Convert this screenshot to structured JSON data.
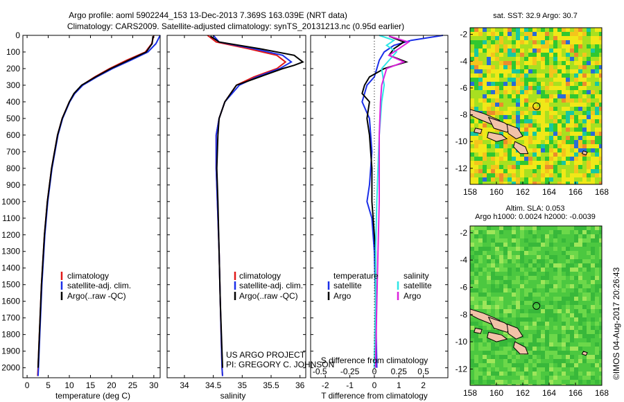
{
  "header": {
    "line1": "Argo profile: aoml 5902244_153 13-Dec-2013 7.369S 163.039E (NRT data)",
    "line2": "Climatology: CARS2009. Satellite-adjusted climatology: synTS_20131213.nc (0.95d earlier)"
  },
  "credit": {
    "line1": "US ARGO PROJECT",
    "line2": "PI: GREGORY C. JOHNSON"
  },
  "timestamp": "©IMOS 04-Aug-2017 20:26:43",
  "colors": {
    "climatology": "#e01818",
    "satellite": "#1a2ee8",
    "argo": "#000000",
    "satellite_salinity": "#2ee6e6",
    "argo_salinity": "#dd22dd",
    "land": "#f2c2a8"
  },
  "chart_data": [
    {
      "type": "line",
      "xlabel": "temperature (deg C)",
      "ylabel": "",
      "xlim": [
        -1,
        31.5
      ],
      "ylim": [
        2060,
        0
      ],
      "x_ticks": [
        0,
        5,
        10,
        15,
        20,
        25,
        30
      ],
      "y_ticks": [
        0,
        100,
        200,
        300,
        400,
        500,
        600,
        700,
        800,
        900,
        1000,
        1100,
        1200,
        1300,
        1400,
        1500,
        1600,
        1700,
        1800,
        1900,
        2000
      ],
      "legend": [
        "climatology",
        "satellite-adj. clim.",
        "Argo(..raw -QC)"
      ],
      "legend_position": "lower-center",
      "series": [
        {
          "name": "climatology",
          "color": "#e01818",
          "depth": [
            0,
            50,
            100,
            150,
            200,
            250,
            300,
            350,
            400,
            500,
            600,
            800,
            1000,
            1200,
            1500,
            1800,
            2000,
            2050
          ],
          "values": [
            30.0,
            29.5,
            28.0,
            23.5,
            19.5,
            16.0,
            13.0,
            11.2,
            10.0,
            8.3,
            7.2,
            5.8,
            4.8,
            4.1,
            3.4,
            2.9,
            2.6,
            2.5
          ]
        },
        {
          "name": "satellite-adj. clim.",
          "color": "#1a2ee8",
          "depth": [
            0,
            50,
            100,
            150,
            200,
            250,
            300,
            350,
            400,
            500,
            600,
            800,
            1000,
            1200,
            1500,
            1800,
            2000,
            2050
          ],
          "values": [
            31.5,
            30.5,
            28.6,
            24.5,
            20.2,
            16.5,
            13.2,
            11.3,
            10.1,
            8.4,
            7.3,
            5.9,
            4.9,
            4.2,
            3.5,
            3.0,
            2.7,
            2.6
          ]
        },
        {
          "name": "Argo(..raw -QC)",
          "color": "#000000",
          "depth": [
            5,
            50,
            100,
            150,
            200,
            250,
            300,
            350,
            400,
            500,
            600,
            800,
            1000,
            1200,
            1500,
            1800,
            2000
          ],
          "values": [
            29.8,
            29.6,
            28.2,
            24.0,
            19.8,
            16.2,
            12.9,
            11.1,
            10.0,
            8.3,
            7.2,
            5.8,
            4.8,
            4.1,
            3.4,
            2.9,
            2.6
          ]
        }
      ]
    },
    {
      "type": "line",
      "xlabel": "salinity",
      "xlim": [
        33.7,
        36.1
      ],
      "ylim": [
        2060,
        0
      ],
      "x_ticks": [
        34,
        34.5,
        35,
        35.5,
        36
      ],
      "legend": [
        "climatology",
        "satellite-adj. clim.",
        "Argo(..raw -QC)"
      ],
      "legend_position": "lower-right",
      "series": [
        {
          "name": "climatology",
          "color": "#e01818",
          "depth": [
            0,
            40,
            80,
            120,
            160,
            200,
            250,
            300,
            400,
            500,
            600,
            800,
            1000,
            1300,
            1600,
            2000,
            2050
          ],
          "values": [
            34.4,
            34.55,
            35.1,
            35.6,
            35.75,
            35.6,
            35.2,
            34.9,
            34.7,
            34.6,
            34.55,
            34.55,
            34.57,
            34.6,
            34.62,
            34.65,
            34.66
          ]
        },
        {
          "name": "satellite-adj. clim.",
          "color": "#1a2ee8",
          "depth": [
            0,
            40,
            80,
            120,
            160,
            200,
            250,
            300,
            400,
            500,
            600,
            800,
            1000,
            1300,
            1600,
            2000,
            2050
          ],
          "values": [
            34.5,
            34.6,
            35.2,
            35.7,
            35.85,
            35.65,
            35.25,
            34.95,
            34.7,
            34.6,
            34.55,
            34.55,
            34.57,
            34.6,
            34.62,
            34.65,
            34.66
          ]
        },
        {
          "name": "Argo(..raw -QC)",
          "color": "#000000",
          "depth": [
            5,
            40,
            80,
            120,
            160,
            180,
            200,
            250,
            300,
            400,
            500,
            600,
            800,
            1000,
            1300,
            1600,
            2000
          ],
          "values": [
            34.45,
            34.6,
            35.3,
            35.9,
            36.05,
            35.9,
            35.7,
            35.3,
            34.9,
            34.7,
            34.6,
            34.58,
            34.56,
            34.58,
            34.6,
            34.62,
            34.66
          ]
        }
      ]
    },
    {
      "type": "line",
      "xlabel": "T difference from climatology",
      "x2label": "S difference from climatology",
      "xlim": [
        -2.6,
        3.0
      ],
      "ylim": [
        2060,
        0
      ],
      "x_ticks": [
        -2,
        -1,
        0,
        1,
        2
      ],
      "x2_tick_labels": [
        "-0.5",
        "-0.25",
        "0",
        "0.25",
        "0.5"
      ],
      "legend_groups": [
        {
          "title": "temperature",
          "items": [
            "satellite",
            "Argo"
          ]
        },
        {
          "title": "salinity",
          "items": [
            "satellite",
            "Argo"
          ]
        }
      ],
      "series": [
        {
          "name": "satellite (temperature)",
          "color": "#1a2ee8",
          "depth": [
            0,
            30,
            60,
            100,
            150,
            200,
            250,
            300,
            400,
            500,
            700,
            900,
            1000,
            1100,
            1300,
            1600,
            2000
          ],
          "values": [
            2.8,
            1.5,
            0.8,
            0.4,
            0.2,
            0.1,
            0.0,
            -0.3,
            -0.5,
            -0.2,
            -0.1,
            -0.2,
            -0.3,
            -0.1,
            0.0,
            0.05,
            0.1
          ]
        },
        {
          "name": "Argo (temperature)",
          "color": "#000000",
          "depth": [
            5,
            40,
            80,
            120,
            160,
            200,
            250,
            300,
            350,
            400,
            500,
            600,
            800,
            1000,
            1300,
            1600,
            2000
          ],
          "values": [
            0.6,
            1.2,
            0.8,
            0.6,
            1.3,
            0.4,
            -0.2,
            -0.4,
            -0.5,
            -0.2,
            -0.3,
            -0.2,
            -0.1,
            -0.1,
            0.05,
            0.05,
            0.0
          ]
        },
        {
          "name": "satellite (salinity)",
          "color": "#2ee6e6",
          "depth": [
            0,
            30,
            60,
            100,
            150,
            200,
            300,
            400,
            600,
            800,
            1000,
            1300,
            1600,
            2000
          ],
          "values": [
            0.2,
            0.8,
            0.5,
            0.9,
            0.6,
            0.3,
            0.4,
            0.3,
            0.2,
            0.15,
            0.1,
            0.05,
            0.05,
            0.0
          ]
        },
        {
          "name": "Argo (salinity)",
          "color": "#dd22dd",
          "depth": [
            5,
            40,
            80,
            120,
            160,
            200,
            300,
            400,
            600,
            800,
            1000,
            1300,
            1600,
            2000
          ],
          "values": [
            0.6,
            1.4,
            1.0,
            0.6,
            1.2,
            0.5,
            0.3,
            0.25,
            0.2,
            0.2,
            0.2,
            0.15,
            0.1,
            0.05
          ]
        }
      ]
    },
    {
      "type": "heatmap",
      "title": "sat. SST: 32.9 Argo: 30.7",
      "xlim": [
        158,
        168
      ],
      "ylim": [
        -13.2,
        -1.5
      ],
      "x_ticks": [
        158,
        160,
        162,
        164,
        166,
        168
      ],
      "y_ticks": [
        -2,
        -4,
        -6,
        -8,
        -10,
        -12
      ],
      "marker": {
        "lon": 163.039,
        "lat": -7.369
      }
    },
    {
      "type": "heatmap",
      "title": "Altim. SLA: 0.053",
      "subtitle": "Argo h1000: 0.0024 h2000: -0.0039",
      "xlim": [
        158,
        168
      ],
      "ylim": [
        -13.2,
        -1.5
      ],
      "x_ticks": [
        158,
        160,
        162,
        164,
        166,
        168
      ],
      "y_ticks": [
        -2,
        -4,
        -6,
        -8,
        -10,
        -12
      ],
      "marker": {
        "lon": 163.039,
        "lat": -7.369
      }
    }
  ]
}
